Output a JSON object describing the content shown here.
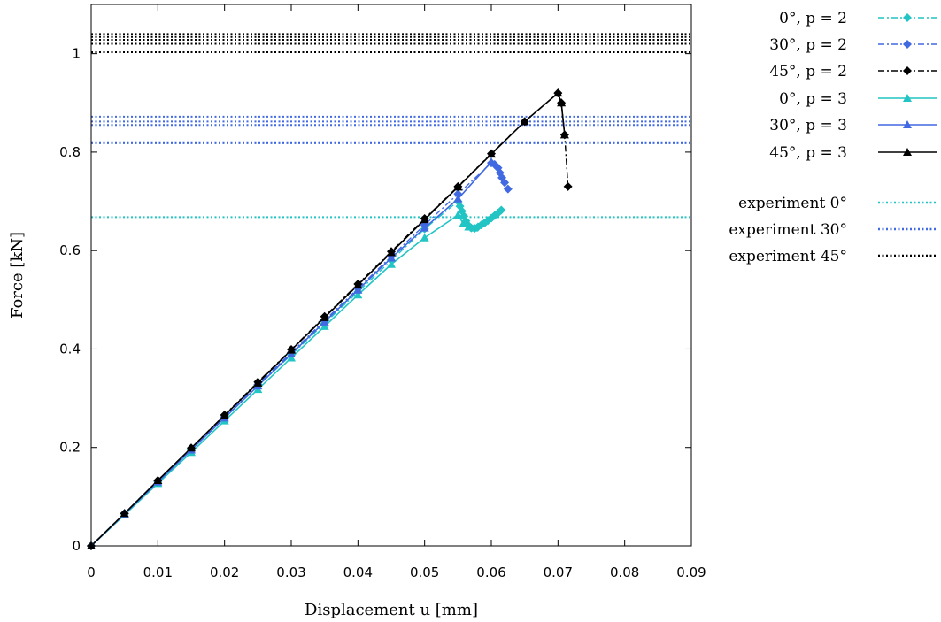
{
  "chart_data": {
    "type": "line",
    "xlabel": "Displacement u [mm]",
    "ylabel": "Force [kN]",
    "xlim": [
      0,
      0.09
    ],
    "ylim": [
      0,
      1.1
    ],
    "xticks": [
      "0",
      "0.01",
      "0.02",
      "0.03",
      "0.04",
      "0.05",
      "0.06",
      "0.07",
      "0.08",
      "0.09"
    ],
    "yticks": [
      "0",
      "0.2",
      "0.4",
      "0.6",
      "0.8",
      "1"
    ],
    "xtick_values": [
      0,
      0.01,
      0.02,
      0.03,
      0.04,
      0.05,
      0.06,
      0.07,
      0.08,
      0.09
    ],
    "ytick_values": [
      0,
      0.2,
      0.4,
      0.6,
      0.8,
      1.0
    ],
    "grid": false,
    "legend_position": "outside-right",
    "series": [
      {
        "name": "0°, p = 2",
        "color": "#22c4c4",
        "dash": "dashdot",
        "marker": "diamond",
        "x": [
          0,
          0.005,
          0.01,
          0.015,
          0.02,
          0.025,
          0.03,
          0.035,
          0.04,
          0.045,
          0.05,
          0.055,
          0.0553,
          0.0556,
          0.0559,
          0.0562,
          0.0565,
          0.057,
          0.0575,
          0.058,
          0.0585,
          0.059,
          0.0595,
          0.06,
          0.0605,
          0.061,
          0.0615
        ],
        "y": [
          0,
          0.065,
          0.13,
          0.195,
          0.26,
          0.325,
          0.388,
          0.452,
          0.516,
          0.58,
          0.644,
          0.7,
          0.69,
          0.68,
          0.67,
          0.66,
          0.652,
          0.646,
          0.645,
          0.648,
          0.652,
          0.656,
          0.661,
          0.666,
          0.671,
          0.676,
          0.682
        ]
      },
      {
        "name": "30°, p = 2",
        "color": "#4169e1",
        "dash": "dashdot",
        "marker": "diamond",
        "x": [
          0,
          0.005,
          0.01,
          0.015,
          0.02,
          0.025,
          0.03,
          0.035,
          0.04,
          0.045,
          0.05,
          0.055,
          0.06,
          0.0605,
          0.061,
          0.0613,
          0.0616,
          0.062,
          0.0625
        ],
        "y": [
          0,
          0.066,
          0.132,
          0.197,
          0.262,
          0.328,
          0.393,
          0.458,
          0.523,
          0.588,
          0.652,
          0.715,
          0.778,
          0.775,
          0.768,
          0.758,
          0.748,
          0.738,
          0.725
        ]
      },
      {
        "name": "45°, p = 2",
        "color": "#000000",
        "dash": "dashdot",
        "marker": "diamond",
        "x": [
          0,
          0.005,
          0.01,
          0.015,
          0.02,
          0.025,
          0.03,
          0.035,
          0.04,
          0.045,
          0.05,
          0.055,
          0.06,
          0.065,
          0.07,
          0.0705,
          0.071,
          0.0715
        ],
        "y": [
          0,
          0.066,
          0.133,
          0.199,
          0.266,
          0.333,
          0.399,
          0.466,
          0.532,
          0.598,
          0.665,
          0.73,
          0.797,
          0.862,
          0.92,
          0.9,
          0.835,
          0.73
        ]
      },
      {
        "name": "0°, p = 3",
        "color": "#22c4c4",
        "dash": "solid",
        "marker": "triangle",
        "x": [
          0,
          0.005,
          0.01,
          0.015,
          0.02,
          0.025,
          0.03,
          0.035,
          0.04,
          0.045,
          0.05,
          0.055,
          0.0558,
          0.0566,
          0.0574
        ],
        "y": [
          0,
          0.063,
          0.127,
          0.19,
          0.254,
          0.318,
          0.382,
          0.446,
          0.51,
          0.572,
          0.626,
          0.672,
          0.655,
          0.648,
          0.646
        ]
      },
      {
        "name": "30°, p = 3",
        "color": "#4169e1",
        "dash": "solid",
        "marker": "triangle",
        "x": [
          0,
          0.005,
          0.01,
          0.015,
          0.02,
          0.025,
          0.03,
          0.035,
          0.04,
          0.045,
          0.05,
          0.055,
          0.06
        ],
        "y": [
          0,
          0.065,
          0.13,
          0.195,
          0.26,
          0.325,
          0.39,
          0.455,
          0.52,
          0.585,
          0.646,
          0.705,
          0.78
        ]
      },
      {
        "name": "45°, p = 3",
        "color": "#000000",
        "dash": "solid",
        "marker": "triangle",
        "x": [
          0,
          0.005,
          0.01,
          0.015,
          0.02,
          0.025,
          0.03,
          0.035,
          0.04,
          0.045,
          0.05,
          0.055,
          0.06,
          0.065,
          0.07,
          0.0705,
          0.071
        ],
        "y": [
          0,
          0.066,
          0.133,
          0.199,
          0.265,
          0.331,
          0.398,
          0.464,
          0.53,
          0.596,
          0.663,
          0.729,
          0.796,
          0.862,
          0.92,
          0.9,
          0.835
        ]
      }
    ],
    "experiments": [
      {
        "name": "experiment 0°",
        "color": "#22c4c4",
        "values": [
          0.668
        ]
      },
      {
        "name": "experiment 30°",
        "color": "#4169e1",
        "values": [
          0.818,
          0.82,
          0.855,
          0.862,
          0.872
        ]
      },
      {
        "name": "experiment 45°",
        "color": "#000000",
        "values": [
          1.003,
          1.02,
          1.028,
          1.034,
          1.04
        ]
      }
    ]
  }
}
